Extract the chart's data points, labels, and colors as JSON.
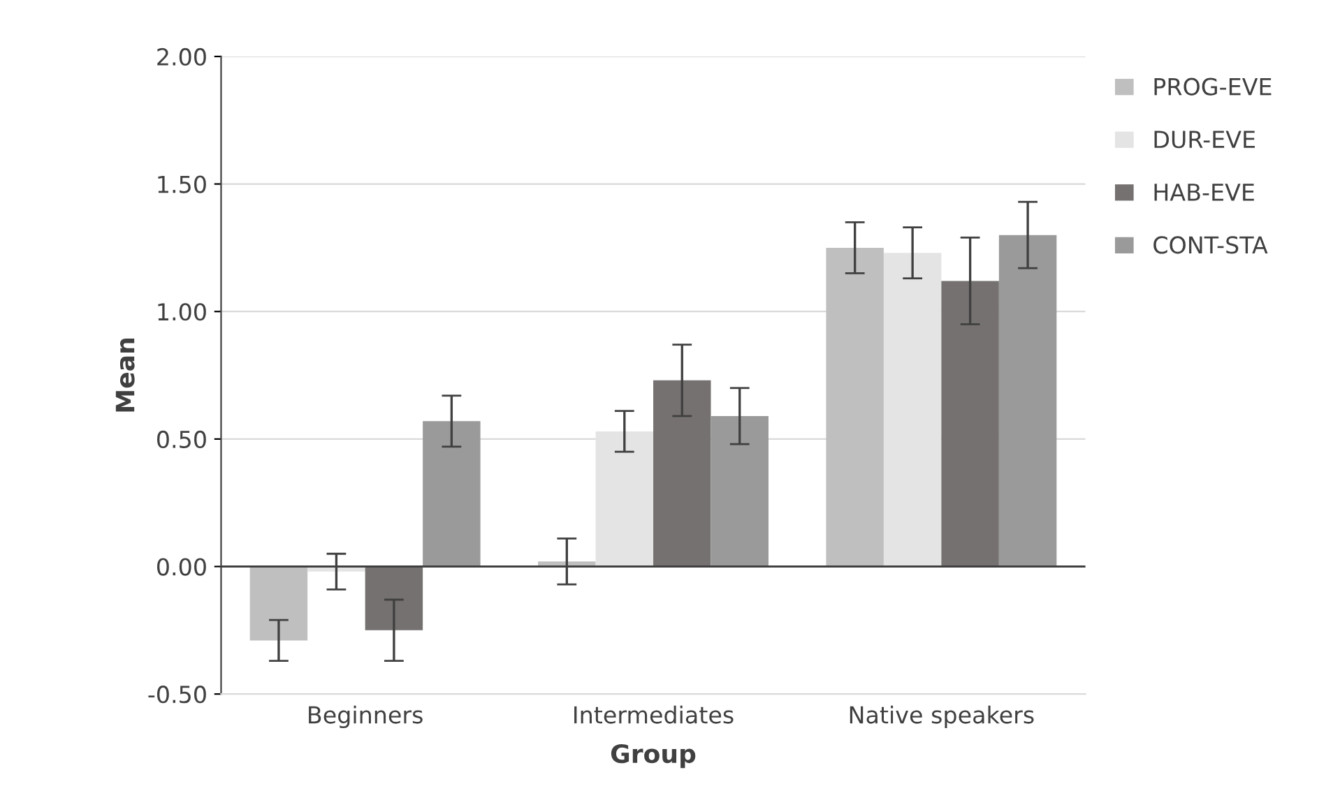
{
  "chart_data": {
    "type": "bar",
    "xlabel": "Group",
    "ylabel": "Mean",
    "categories": [
      "Beginners",
      "Intermediates",
      "Native speakers"
    ],
    "series": [
      {
        "name": "PROG-EVE",
        "color": "#bfbfbf",
        "values": [
          -0.29,
          0.02,
          1.25
        ],
        "errors": [
          0.08,
          0.09,
          0.1
        ]
      },
      {
        "name": "DUR-EVE",
        "color": "#e4e4e4",
        "values": [
          -0.02,
          0.53,
          1.23
        ],
        "errors": [
          0.07,
          0.08,
          0.1
        ]
      },
      {
        "name": "HAB-EVE",
        "color": "#767171",
        "values": [
          -0.25,
          0.73,
          1.12
        ],
        "errors": [
          0.12,
          0.14,
          0.17
        ]
      },
      {
        "name": "CONT-STA",
        "color": "#9a9a9a",
        "values": [
          0.57,
          0.59,
          1.3
        ],
        "errors": [
          0.1,
          0.11,
          0.13
        ]
      }
    ],
    "ylim": [
      -0.5,
      2.0
    ],
    "yticks": [
      {
        "value": -0.5,
        "label": "-0.50"
      },
      {
        "value": 0,
        "label": "0.00"
      },
      {
        "value": 0.5,
        "label": "0.50"
      },
      {
        "value": 1.0,
        "label": "1.00"
      },
      {
        "value": 1.5,
        "label": "1.50"
      },
      {
        "value": 2.0,
        "label": "2.00"
      }
    ],
    "grid": "y",
    "legend": "right"
  }
}
